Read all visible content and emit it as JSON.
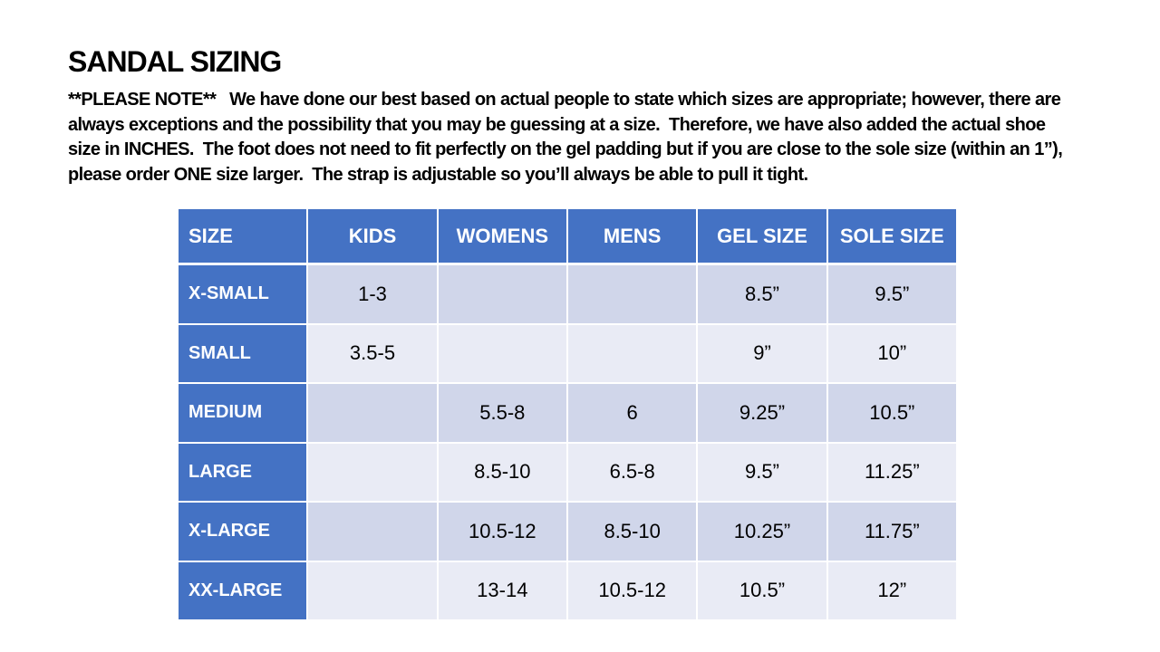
{
  "title": "SANDAL SIZING",
  "note": {
    "lines": [
      "**PLEASE NOTE**   We have done our best based on actual people to state which sizes are appropriate; however, there are",
      "always exceptions and the possibility that you may be guessing at a size.  Therefore, we have also added the actual shoe",
      "size in INCHES.  The foot does not need to fit perfectly on the gel padding but if you are close to the sole size (within an 1”),",
      "please order ONE size larger.  The strap is adjustable so you’ll always be able to pull it tight."
    ]
  },
  "table": {
    "headers": [
      "SIZE",
      "KIDS",
      "WOMENS",
      "MENS",
      "GEL SIZE",
      "SOLE SIZE"
    ],
    "rows": [
      {
        "size": "X-SMALL",
        "kids": "1-3",
        "womens": "",
        "mens": "",
        "gel": "8.5”",
        "sole": "9.5”"
      },
      {
        "size": "SMALL",
        "kids": "3.5-5",
        "womens": "",
        "mens": "",
        "gel": "9”",
        "sole": "10”"
      },
      {
        "size": "MEDIUM",
        "kids": "",
        "womens": "5.5-8",
        "mens": "6",
        "gel": "9.25”",
        "sole": "10.5”"
      },
      {
        "size": "LARGE",
        "kids": "",
        "womens": "8.5-10",
        "mens": "6.5-8",
        "gel": "9.5”",
        "sole": "11.25”"
      },
      {
        "size": "X-LARGE",
        "kids": "",
        "womens": "10.5-12",
        "mens": "8.5-10",
        "gel": "10.25”",
        "sole": "11.75”"
      },
      {
        "size": "XX-LARGE",
        "kids": "",
        "womens": "13-14",
        "mens": "10.5-12",
        "gel": "10.5”",
        "sole": "12”"
      }
    ]
  },
  "colors": {
    "header_blue": "#4472C4",
    "band_dark": "#D0D6EA",
    "band_light": "#E9EBF5"
  }
}
